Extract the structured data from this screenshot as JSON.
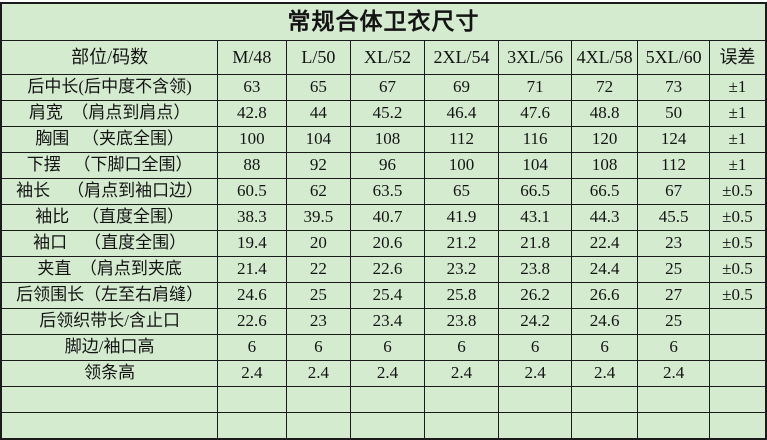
{
  "title": "常规合体卫衣尺寸",
  "colors": {
    "background": "#d4ebd0",
    "red_text": "#e22c2c",
    "text": "#141414",
    "border": "#1b1b1b"
  },
  "table": {
    "columns": [
      "部位/码数",
      "M/48",
      "L/50",
      "XL/52",
      "2XL/54",
      "3XL/56",
      "4XL/58",
      "5XL/60",
      "误差"
    ],
    "red_header_columns": [
      1,
      2,
      3,
      4,
      5,
      6,
      7
    ],
    "rows": [
      {
        "label": "后中长(后中度不含领)",
        "values": [
          "63",
          "65",
          "67",
          "69",
          "71",
          "72",
          "73"
        ],
        "tolerance": "±1",
        "values_red": false
      },
      {
        "label": "肩宽  （肩点到肩点）",
        "values": [
          "42.8",
          "44",
          "45.2",
          "46.4",
          "47.6",
          "48.8",
          "50"
        ],
        "tolerance": "±1",
        "values_red": false
      },
      {
        "label": "胸围   （夹底全围）",
        "values": [
          "100",
          "104",
          "108",
          "112",
          "116",
          "120",
          "124"
        ],
        "tolerance": "±1",
        "values_red": false
      },
      {
        "label": "下摆   （下脚口全围）",
        "values": [
          "88",
          "92",
          "96",
          "100",
          "104",
          "108",
          "112"
        ],
        "tolerance": "±1",
        "values_red": false
      },
      {
        "label": "袖长    （肩点到袖口边）",
        "values": [
          "60.5",
          "62",
          "63.5",
          "65",
          "66.5",
          "66.5",
          "67"
        ],
        "tolerance": "±0.5",
        "values_red": false
      },
      {
        "label": "袖比   （直度全围）",
        "values": [
          "38.3",
          "39.5",
          "40.7",
          "41.9",
          "43.1",
          "44.3",
          "45.5"
        ],
        "tolerance": "±0.5",
        "values_red": false
      },
      {
        "label": "袖口    （直度全围）",
        "values": [
          "19.4",
          "20",
          "20.6",
          "21.2",
          "21.8",
          "22.4",
          "23"
        ],
        "tolerance": "±0.5",
        "values_red": false
      },
      {
        "label": "夹直  （肩点到夹底",
        "values": [
          "21.4",
          "22",
          "22.6",
          "23.2",
          "23.8",
          "24.4",
          "25"
        ],
        "tolerance": "±0.5",
        "values_red": false
      },
      {
        "label": "后领围长（左至右肩缝）",
        "values": [
          "24.6",
          "25",
          "25.4",
          "25.8",
          "26.2",
          "26.6",
          "27"
        ],
        "tolerance": "±0.5",
        "values_red": false
      },
      {
        "label": "后领织带长/含止口",
        "values": [
          "22.6",
          "23",
          "23.4",
          "23.8",
          "24.2",
          "24.6",
          "25"
        ],
        "tolerance": "",
        "values_red": true
      },
      {
        "label": "脚边/袖口高",
        "values": [
          "6",
          "6",
          "6",
          "6",
          "6",
          "6",
          "6"
        ],
        "tolerance": "",
        "values_red": false
      },
      {
        "label": "领条高",
        "values": [
          "2.4",
          "2.4",
          "2.4",
          "2.4",
          "2.4",
          "2.4",
          "2.4"
        ],
        "tolerance": "",
        "values_red": false
      },
      {
        "label": "",
        "values": [
          "",
          "",
          "",
          "",
          "",
          "",
          ""
        ],
        "tolerance": "",
        "values_red": false
      },
      {
        "label": "",
        "values": [
          "",
          "",
          "",
          "",
          "",
          "",
          ""
        ],
        "tolerance": "",
        "values_red": false
      }
    ]
  }
}
